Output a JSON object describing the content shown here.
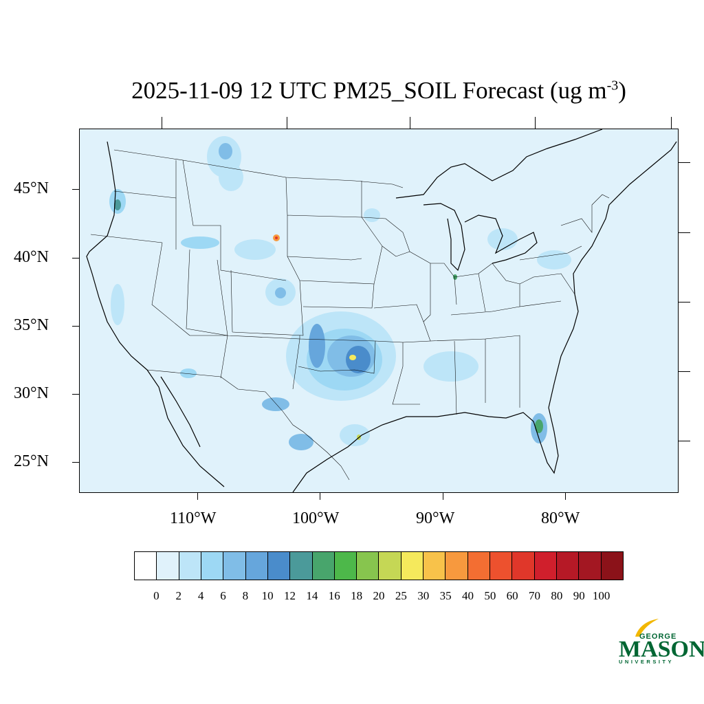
{
  "title": {
    "main": "2025-11-09 12 UTC PM25_SOIL Forecast (ug m",
    "exponent": "-3",
    "close": ")"
  },
  "axes": {
    "lat_labels": [
      "45°N",
      "40°N",
      "35°N",
      "30°N",
      "25°N"
    ],
    "lon_labels": [
      "110°W",
      "100°W",
      "90°W",
      "80°W"
    ]
  },
  "colorbar": {
    "labels": [
      "0",
      "2",
      "4",
      "6",
      "8",
      "10",
      "12",
      "14",
      "16",
      "18",
      "20",
      "25",
      "30",
      "35",
      "40",
      "50",
      "60",
      "70",
      "80",
      "90",
      "100"
    ],
    "colors": [
      "#ffffff",
      "#e0f2fb",
      "#bde5f8",
      "#9dd8f4",
      "#80bde7",
      "#66a6dc",
      "#4a8ccb",
      "#4b9a9a",
      "#48a56c",
      "#4db84a",
      "#87c54e",
      "#c5d755",
      "#f5e95c",
      "#f8c24a",
      "#f7993e",
      "#f36e32",
      "#ed512e",
      "#e0372a",
      "#d01f2c",
      "#b61926",
      "#a31722",
      "#8b1219"
    ]
  },
  "map": {
    "background_color": "#e0f2fb",
    "hotspot_colors": {
      "light": "#bde5f8",
      "mid": "#80bde7",
      "high": "#4a8ccb",
      "green": "#48a56c",
      "yellow": "#f5e95c",
      "red": "#e0372a"
    }
  },
  "logo": {
    "line1": "GEORGE",
    "line2": "MASON",
    "line3": "UNIVERSITY"
  }
}
